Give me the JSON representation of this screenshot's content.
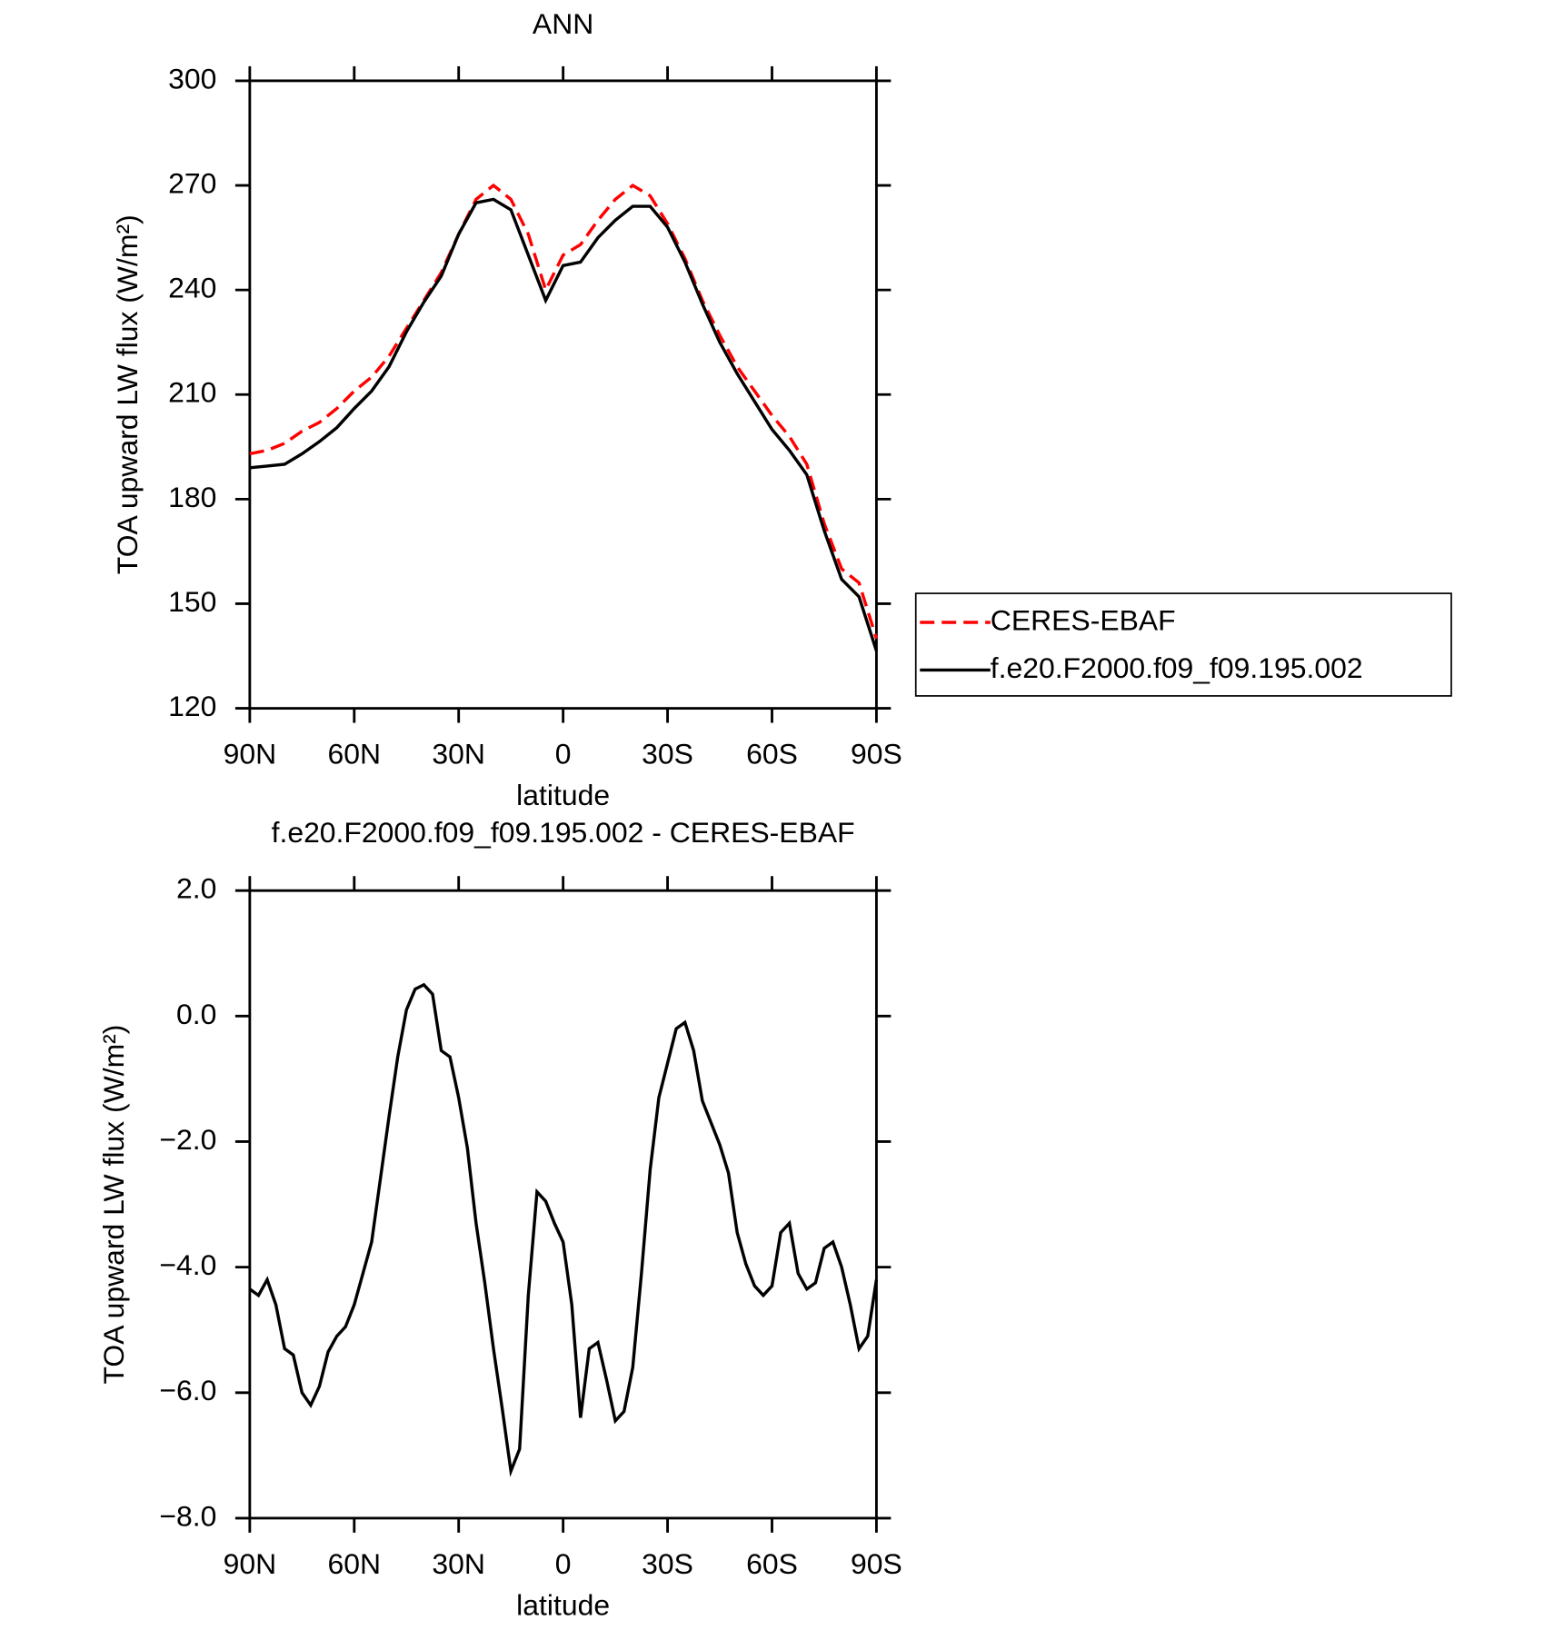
{
  "chart_data": [
    {
      "type": "line",
      "title": "ANN",
      "xlabel": "latitude",
      "ylabel": "TOA upward LW flux (W/m²)",
      "x": [
        90,
        85,
        80,
        75,
        70,
        65,
        60,
        55,
        50,
        45,
        40,
        35,
        30,
        25,
        20,
        15,
        10,
        5,
        0,
        -5,
        -10,
        -15,
        -20,
        -25,
        -30,
        -35,
        -40,
        -45,
        -50,
        -55,
        -60,
        -65,
        -70,
        -75,
        -80,
        -85,
        -90
      ],
      "series": [
        {
          "name": "CERES-EBAF",
          "color": "#ff0000",
          "dash": "dashed",
          "values": [
            193,
            194,
            196,
            199.5,
            202,
            206,
            211,
            215,
            221,
            229,
            237,
            245,
            256,
            266,
            270,
            266,
            256,
            240,
            250,
            253,
            260,
            266,
            270,
            267,
            259,
            249,
            237,
            227,
            218,
            211,
            204,
            198,
            190,
            173,
            160,
            156,
            140
          ]
        },
        {
          "name": "f.e20.F2000.f09_f09.195.002",
          "color": "#000000",
          "dash": "solid",
          "values": [
            189,
            189.5,
            190,
            193,
            196.5,
            200.5,
            206,
            211,
            218,
            228,
            236.5,
            244,
            256,
            265,
            266,
            263,
            250,
            237,
            247,
            248,
            255,
            260,
            264,
            264,
            258,
            248,
            236,
            225,
            216,
            208,
            200,
            194,
            187,
            171,
            157,
            152,
            136.5
          ]
        }
      ],
      "xlim": [
        90,
        -90
      ],
      "xticks": [
        {
          "value": 90,
          "label": "90N"
        },
        {
          "value": 60,
          "label": "60N"
        },
        {
          "value": 30,
          "label": "30N"
        },
        0,
        {
          "value": -30,
          "label": "30S"
        },
        {
          "value": -60,
          "label": "60S"
        },
        {
          "value": -90,
          "label": "90S"
        }
      ],
      "ylim": [
        120,
        300
      ],
      "yticks": [
        120,
        150,
        180,
        210,
        240,
        270,
        300
      ],
      "legend": "right"
    },
    {
      "type": "line",
      "title": "f.e20.F2000.f09_f09.195.002 - CERES-EBAF",
      "xlabel": "latitude",
      "ylabel": "TOA upward LW flux (W/m²)",
      "x": [
        90,
        87.5,
        85,
        82.5,
        80,
        77.5,
        75,
        72.5,
        70,
        67.5,
        65,
        62.5,
        60,
        57.5,
        55,
        52.5,
        50,
        47.5,
        45,
        42.5,
        40,
        37.5,
        35,
        32.5,
        30,
        27.5,
        25,
        22.5,
        20,
        17.5,
        15,
        12.5,
        10,
        7.5,
        5,
        2.5,
        0,
        -2.5,
        -5,
        -7.5,
        -10,
        -12.5,
        -15,
        -17.5,
        -20,
        -22.5,
        -25,
        -27.5,
        -30,
        -32.5,
        -35,
        -37.5,
        -40,
        -42.5,
        -45,
        -47.5,
        -50,
        -52.5,
        -55,
        -57.5,
        -60,
        -62.5,
        -65,
        -67.5,
        -70,
        -72.5,
        -75,
        -77.5,
        -80,
        -82.5,
        -85,
        -87.5,
        -90
      ],
      "series": [
        {
          "name": null,
          "color": "#000000",
          "dash": "solid",
          "values": [
            -4.35,
            -4.45,
            -4.2,
            -4.6,
            -5.3,
            -5.4,
            -6.0,
            -6.2,
            -5.9,
            -5.35,
            -5.1,
            -4.95,
            -4.6,
            -4.1,
            -3.6,
            -2.6,
            -1.6,
            -0.65,
            0.1,
            0.43,
            0.5,
            0.35,
            -0.55,
            -0.65,
            -1.3,
            -2.1,
            -3.3,
            -4.25,
            -5.3,
            -6.25,
            -7.25,
            -6.9,
            -4.45,
            -2.8,
            -2.95,
            -3.3,
            -3.6,
            -4.6,
            -6.4,
            -5.3,
            -5.2,
            -5.8,
            -6.45,
            -6.3,
            -5.6,
            -4.1,
            -2.45,
            -1.3,
            -0.75,
            -0.2,
            -0.1,
            -0.55,
            -1.35,
            -1.7,
            -2.05,
            -2.5,
            -3.45,
            -3.95,
            -4.3,
            -4.45,
            -4.3,
            -3.45,
            -3.3,
            -4.1,
            -4.35,
            -4.25,
            -3.7,
            -3.6,
            -4.0,
            -4.6,
            -5.3,
            -5.1,
            -4.2
          ]
        }
      ],
      "xlim": [
        90,
        -90
      ],
      "xticks": [
        {
          "value": 90,
          "label": "90N"
        },
        {
          "value": 60,
          "label": "60N"
        },
        {
          "value": 30,
          "label": "30N"
        },
        0,
        {
          "value": -30,
          "label": "30S"
        },
        {
          "value": -60,
          "label": "60S"
        },
        {
          "value": -90,
          "label": "90S"
        }
      ],
      "ylim": [
        -8,
        2
      ],
      "yticks": [
        {
          "value": -8,
          "label": "−8.0"
        },
        {
          "value": -6,
          "label": "−6.0"
        },
        {
          "value": -4,
          "label": "−4.0"
        },
        {
          "value": -2,
          "label": "−2.0"
        },
        {
          "value": 0,
          "label": "0.0"
        },
        {
          "value": 2,
          "label": "2.0"
        }
      ]
    }
  ]
}
